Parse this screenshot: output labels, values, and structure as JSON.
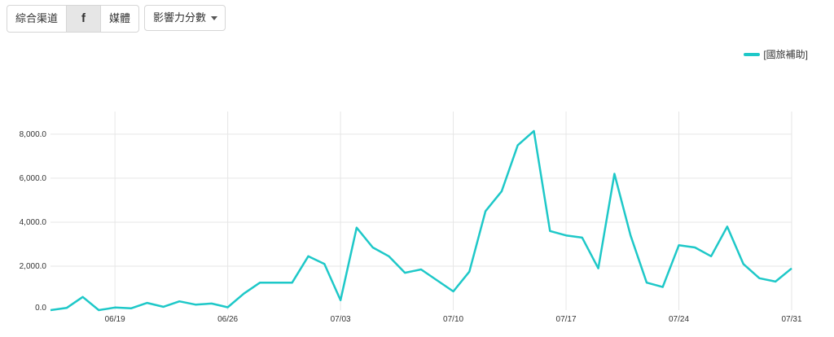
{
  "toolbar": {
    "channel_label": "綜合渠道",
    "facebook_label": "f",
    "media_label": "媒體",
    "metric_select": "影響力分數"
  },
  "colors": {
    "series": "#1ec8c8",
    "grid": "#e6e6e6"
  },
  "chart_data": {
    "type": "line",
    "title": "",
    "xlabel": "",
    "ylabel": "",
    "legend_position": "top-right",
    "grid": true,
    "x_ticks": [
      "06/19",
      "06/26",
      "07/03",
      "07/10",
      "07/17",
      "07/24",
      "07/31"
    ],
    "y_ticks": [
      "0.0",
      "2,000.0",
      "4,000.0",
      "6,000.0",
      "8,000.0"
    ],
    "ylim": [
      0,
      8700
    ],
    "x_range": [
      "06/15",
      "07/31"
    ],
    "x": [
      "06/15",
      "06/16",
      "06/17",
      "06/18",
      "06/19",
      "06/20",
      "06/21",
      "06/22",
      "06/23",
      "06/24",
      "06/25",
      "06/26",
      "06/27",
      "06/28",
      "06/29",
      "06/30",
      "07/01",
      "07/02",
      "07/03",
      "07/04",
      "07/05",
      "07/06",
      "07/07",
      "07/08",
      "07/09",
      "07/10",
      "07/11",
      "07/12",
      "07/13",
      "07/14",
      "07/15",
      "07/16",
      "07/17",
      "07/18",
      "07/19",
      "07/20",
      "07/21",
      "07/22",
      "07/23",
      "07/24",
      "07/25",
      "07/26",
      "07/27",
      "07/28",
      "07/29",
      "07/30",
      "07/31"
    ],
    "series": [
      {
        "name": "[國旅補助]",
        "values": [
          0,
          100,
          600,
          0,
          120,
          80,
          330,
          150,
          400,
          250,
          300,
          130,
          750,
          1250,
          1250,
          1250,
          2450,
          2100,
          450,
          3750,
          2850,
          2450,
          1700,
          1850,
          1350,
          850,
          1750,
          4500,
          5400,
          7500,
          8150,
          3600,
          3400,
          3300,
          1900,
          6200,
          3400,
          1250,
          1050,
          2950,
          2850,
          2450,
          3800,
          2100,
          1450,
          1300,
          1900
        ]
      }
    ]
  }
}
